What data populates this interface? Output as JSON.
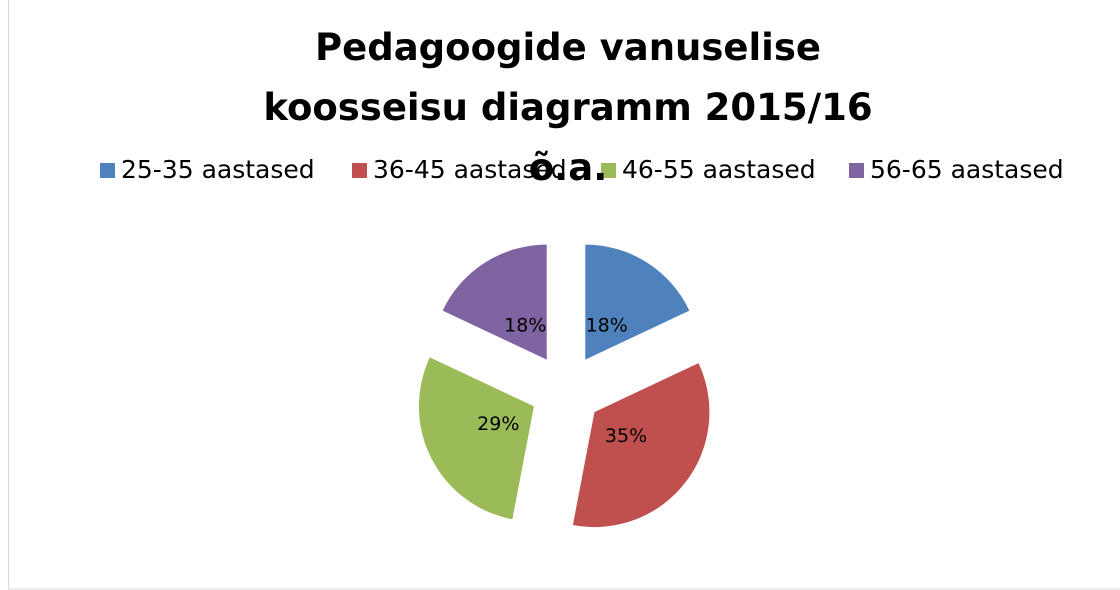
{
  "chart_data": {
    "type": "pie",
    "title": "Pedagoogide vanuselise koosseisu diagramm 2015/16 õ.a.",
    "categories": [
      "25-35 aastased",
      "36-45 aastased",
      "46-55 aastased",
      "56-65 aastased"
    ],
    "values": [
      18,
      35,
      29,
      18
    ],
    "value_labels": [
      "18%",
      "35%",
      "29%",
      "18%"
    ],
    "colors": [
      "#4f81bd",
      "#c0504d",
      "#9bbb59",
      "#8064a2"
    ],
    "legend": "top",
    "exploded": true
  }
}
